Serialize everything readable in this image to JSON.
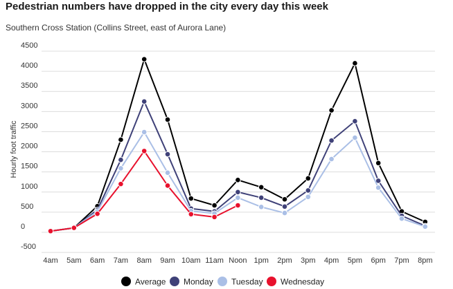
{
  "chart_data": {
    "type": "line",
    "title": "Pedestrian numbers have dropped in the city every day this week",
    "subtitle": "Southern Cross Station (Collins Street, east of Aurora Lane)",
    "ylabel": "Hourly foot traffic",
    "xlabel": "",
    "categories": [
      "4am",
      "5am",
      "6am",
      "7am",
      "8am",
      "9am",
      "10am",
      "11am",
      "Noon",
      "1pm",
      "2pm",
      "3pm",
      "4pm",
      "5pm",
      "6pm",
      "7pm",
      "8pm"
    ],
    "yticks": [
      -500,
      0,
      500,
      1000,
      1500,
      2000,
      2500,
      3000,
      3500,
      4000,
      4500
    ],
    "ytick_labels": [
      "-500",
      "0",
      "500",
      "1000",
      "1500",
      "2000",
      "2500",
      "3000",
      "3500",
      "4000",
      "4500"
    ],
    "ylim": [
      -500,
      4500
    ],
    "grid": true,
    "legend_position": "bottom",
    "series": [
      {
        "name": "Average",
        "color": "#000000",
        "values": [
          30,
          110,
          650,
          2300,
          4300,
          2800,
          840,
          670,
          1300,
          1120,
          820,
          1340,
          3030,
          4200,
          1720,
          520,
          260
        ]
      },
      {
        "name": "Monday",
        "color": "#3f4178",
        "values": [
          30,
          110,
          560,
          1800,
          3250,
          1940,
          590,
          520,
          1000,
          860,
          640,
          1040,
          2280,
          2760,
          1280,
          410,
          160
        ]
      },
      {
        "name": "Tuesday",
        "color": "#aabfe6",
        "values": [
          30,
          110,
          520,
          1590,
          2490,
          1480,
          530,
          470,
          860,
          630,
          480,
          880,
          1820,
          2350,
          1110,
          340,
          140
        ]
      },
      {
        "name": "Wednesday",
        "color": "#e8112d",
        "values": [
          30,
          110,
          460,
          1200,
          2020,
          1160,
          450,
          380,
          670,
          null,
          null,
          null,
          null,
          null,
          null,
          null,
          null
        ]
      }
    ]
  }
}
